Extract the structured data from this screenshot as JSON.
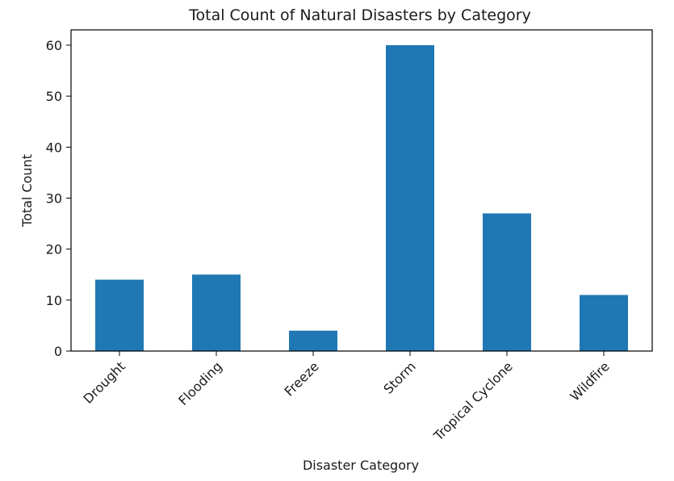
{
  "chart_data": {
    "type": "bar",
    "title": "Total Count of Natural Disasters by Category",
    "xlabel": "Disaster Category",
    "ylabel": "Total Count",
    "categories": [
      "Drought",
      "Flooding",
      "Freeze",
      "Storm",
      "Tropical Cyclone",
      "Wildfire"
    ],
    "values": [
      14,
      15,
      4,
      60,
      27,
      11
    ],
    "ylim": [
      0,
      63
    ],
    "yticks": [
      0,
      10,
      20,
      30,
      40,
      50,
      60
    ],
    "bar_color": "#1f77b4",
    "grid": false,
    "legend": false
  }
}
